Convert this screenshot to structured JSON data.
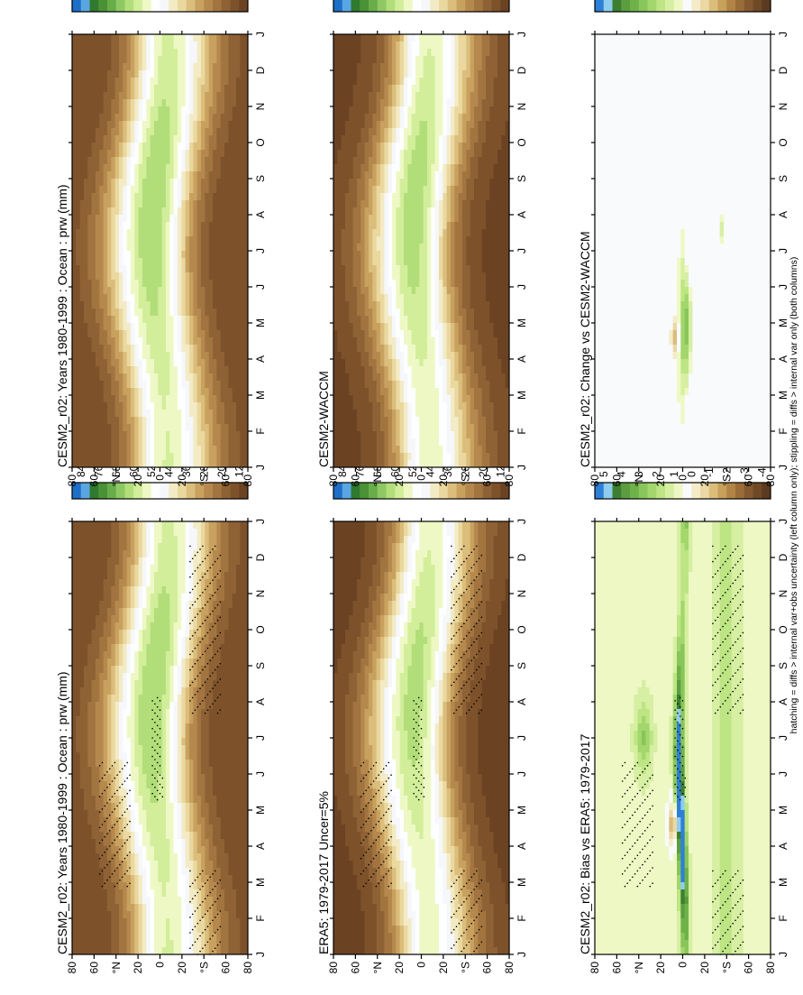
{
  "footer_note": "hatching = diffs > internal var+obs uncertainty (left column only); stippling = diffs > internal var only (both columns)",
  "colors": {
    "abs_scale": [
      "#6b4323",
      "#7d522b",
      "#8f6235",
      "#a27540",
      "#b5894e",
      "#c9a15f",
      "#dbbd7c",
      "#ead89f",
      "#f3ebc5",
      "#f5f7fb",
      "#fcfeff",
      "#eef8c4",
      "#d2ee9a",
      "#b2de7a",
      "#8dc862",
      "#69ad4a",
      "#4b9135",
      "#2f7a2e",
      "#5aa6e3",
      "#1e6fc7"
    ],
    "diff_scale": [
      "#5b3a1f",
      "#6f4926",
      "#84592f",
      "#9a6c38",
      "#b18445",
      "#c7a05a",
      "#dbbd7c",
      "#ebd8a4",
      "#f4ecc8",
      "#f8fafc",
      "#eef8c4",
      "#d6efa2",
      "#bde584",
      "#a3d66c",
      "#88c55a",
      "#6fb24a",
      "#5c9e3f",
      "#3d7f30",
      "#8fcdee",
      "#2e7fd6"
    ],
    "frame": "#000000",
    "stipple": "#000000"
  },
  "chart_data": [
    {
      "id": "model_abs",
      "type": "heatmap",
      "title": "CESM2_r02: Years 1980-1999 : Ocean : prw (mm)",
      "x_ticks": [
        "J",
        "F",
        "M",
        "A",
        "M",
        "J",
        "J",
        "A",
        "S",
        "O",
        "N",
        "D",
        "J"
      ],
      "y_ticks": [
        "80",
        "60",
        "°N",
        "20",
        "0",
        "20",
        "°S",
        "60",
        "80"
      ],
      "ylim": [
        -90,
        90
      ],
      "field": "abs",
      "colorbar": {
        "labels": [
          "84",
          "76",
          "68",
          "60",
          "52",
          "44",
          "36",
          "28",
          "20",
          "12",
          "4"
        ]
      },
      "stipple": true
    },
    {
      "id": "obs_abs",
      "type": "heatmap",
      "title": "ERA5: 1979-2017 Uncer=5%",
      "x_ticks": [
        "J",
        "F",
        "M",
        "A",
        "M",
        "J",
        "J",
        "A",
        "S",
        "O",
        "N",
        "D",
        "J"
      ],
      "y_ticks": [
        "80",
        "60",
        "°N",
        "20",
        "0",
        "20",
        "°S",
        "60",
        "80"
      ],
      "ylim": [
        -90,
        90
      ],
      "field": "abs",
      "colorbar": {
        "labels": [
          "84",
          "76",
          "68",
          "60",
          "52",
          "44",
          "36",
          "28",
          "20",
          "12",
          "4"
        ]
      },
      "stipple": true
    },
    {
      "id": "bias",
      "type": "heatmap",
      "title": "CESM2_r02: Bias vs ERA5: 1979-2017",
      "x_ticks": [
        "J",
        "F",
        "M",
        "A",
        "M",
        "J",
        "J",
        "A",
        "S",
        "O",
        "N",
        "D",
        "J"
      ],
      "y_ticks": [
        "80",
        "60",
        "°N",
        "20",
        "0",
        "20",
        "°S",
        "60",
        "80"
      ],
      "ylim": [
        -90,
        90
      ],
      "field": "bias",
      "colorbar": {
        "labels": [
          "5",
          "4",
          "3",
          "2",
          "1",
          "0",
          "-1",
          "-2",
          "-3",
          "-4",
          "-5"
        ]
      },
      "stipple": true
    },
    {
      "id": "model_abs_2",
      "type": "heatmap",
      "title": "CESM2_r02: Years 1980-1999 : Ocean : prw (mm)",
      "x_ticks": [
        "J",
        "F",
        "M",
        "A",
        "M",
        "J",
        "J",
        "A",
        "S",
        "O",
        "N",
        "D",
        "J"
      ],
      "y_ticks": [
        "80",
        "60",
        "°N",
        "20",
        "0",
        "20",
        "°S",
        "60",
        "80"
      ],
      "ylim": [
        -90,
        90
      ],
      "field": "abs",
      "colorbar": {
        "labels": [
          "84",
          "76",
          "68",
          "60",
          "52",
          "44",
          "36",
          "28",
          "20",
          "12",
          "4"
        ]
      },
      "stipple": false
    },
    {
      "id": "ref_model_abs",
      "type": "heatmap",
      "title": "CESM2-WACCM",
      "x_ticks": [
        "J",
        "F",
        "M",
        "A",
        "M",
        "J",
        "J",
        "A",
        "S",
        "O",
        "N",
        "D",
        "J"
      ],
      "y_ticks": [
        "80",
        "60",
        "°N",
        "20",
        "0",
        "20",
        "°S",
        "60",
        "80"
      ],
      "ylim": [
        -90,
        90
      ],
      "field": "abs",
      "colorbar": {
        "labels": [
          "84",
          "76",
          "68",
          "60",
          "52",
          "44",
          "36",
          "28",
          "20",
          "12",
          "4"
        ]
      },
      "stipple": false
    },
    {
      "id": "change",
      "type": "heatmap",
      "title": "CESM2_r02: Change vs CESM2-WACCM",
      "x_ticks": [
        "J",
        "F",
        "M",
        "A",
        "M",
        "J",
        "J",
        "A",
        "S",
        "O",
        "N",
        "D",
        "J"
      ],
      "y_ticks": [
        "80",
        "60",
        "°N",
        "20",
        "0",
        "20",
        "°S",
        "60",
        "80"
      ],
      "ylim": [
        -90,
        90
      ],
      "field": "change",
      "colorbar": {
        "labels": [
          "5",
          "4",
          "3",
          "2",
          "1",
          "0",
          "-1",
          "-2",
          "-3",
          "-4",
          "-5"
        ]
      },
      "stipple": false
    }
  ]
}
